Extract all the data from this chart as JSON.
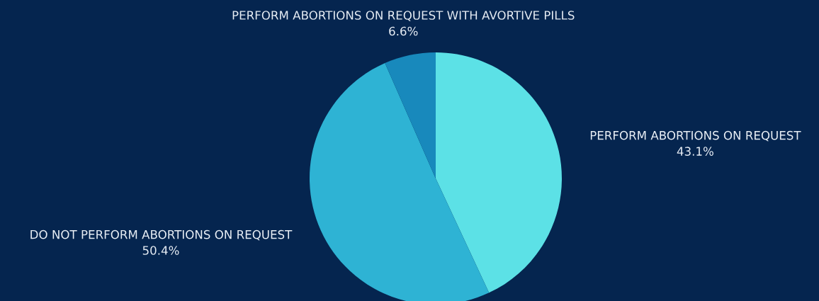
{
  "chart_data": {
    "type": "pie",
    "categories": [
      "PERFORM ABORTIONS ON REQUEST",
      "DO NOT PERFORM ABORTIONS ON REQUEST",
      "PERFORM ABORTIONS ON REQUEST WITH AVORTIVE PILLS"
    ],
    "values": [
      43.1,
      50.4,
      6.6
    ],
    "value_labels": [
      "43.1%",
      "50.4%",
      "6.6%"
    ],
    "colors": [
      "#5ce1e6",
      "#2eb3d4",
      "#1889bc"
    ]
  }
}
